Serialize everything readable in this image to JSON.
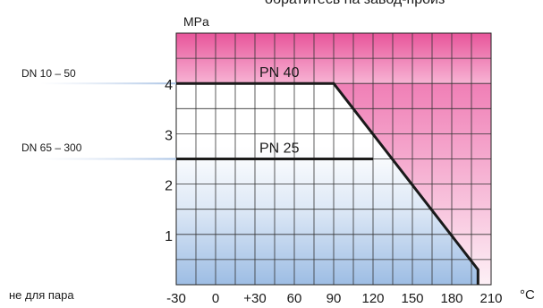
{
  "header": {
    "cut_text": "обратитесь на завод-произ"
  },
  "left_labels": {
    "dn_small": "DN 10 – 50",
    "dn_large": "DN 65 – 300",
    "note": "не для пара"
  },
  "colors": {
    "pink_dark": "#e8559a",
    "pink_light": "#fbd9ea",
    "blue_light": "#a4c2e6",
    "line": "#1a1a1a"
  },
  "chart_data": {
    "type": "line",
    "ylabel": "MPa",
    "xlabel": "°C",
    "x_ticks": [
      "-30",
      "0",
      "+30",
      "60",
      "90",
      "120",
      "150",
      "180",
      "210"
    ],
    "y_ticks": [
      "1",
      "2",
      "3",
      "4"
    ],
    "xlim": [
      -30,
      210
    ],
    "ylim": [
      0,
      5
    ],
    "grid": true,
    "series": [
      {
        "name": "PN 40",
        "x": [
          -30,
          90,
          200,
          200
        ],
        "y": [
          4,
          4,
          0.3,
          0
        ]
      },
      {
        "name": "PN 25",
        "x": [
          -30,
          120
        ],
        "y": [
          2.5,
          2.5
        ]
      }
    ]
  }
}
